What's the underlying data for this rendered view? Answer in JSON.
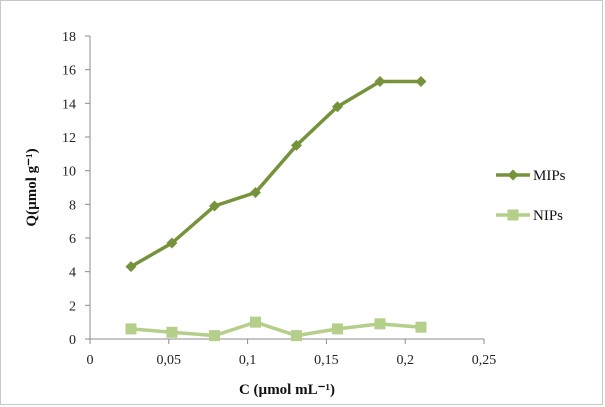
{
  "chart_data": {
    "type": "line",
    "xlabel": "C (µmol mL⁻¹)",
    "ylabel": "Q(µmol g⁻¹)",
    "xlim": [
      0,
      0.25
    ],
    "ylim": [
      0,
      18
    ],
    "x_ticks": [
      "0",
      "0,05",
      "0,1",
      "0,15",
      "0,2",
      "0,25"
    ],
    "x_tick_values": [
      0,
      0.05,
      0.1,
      0.15,
      0.2,
      0.25
    ],
    "y_ticks": [
      "0",
      "2",
      "4",
      "6",
      "8",
      "10",
      "12",
      "14",
      "16",
      "18"
    ],
    "y_tick_values": [
      0,
      2,
      4,
      6,
      8,
      10,
      12,
      14,
      16,
      18
    ],
    "grid": false,
    "legend_position": "right",
    "series": [
      {
        "name": "MIPs",
        "marker": "diamond",
        "color": "#76933c",
        "x": [
          0.026,
          0.052,
          0.079,
          0.105,
          0.131,
          0.157,
          0.184,
          0.21
        ],
        "y": [
          4.3,
          5.7,
          7.9,
          8.7,
          11.5,
          13.8,
          15.3,
          15.3
        ]
      },
      {
        "name": "NIPs",
        "marker": "square",
        "color": "#b4cf8a",
        "x": [
          0.026,
          0.052,
          0.079,
          0.105,
          0.131,
          0.157,
          0.184,
          0.21
        ],
        "y": [
          0.6,
          0.4,
          0.2,
          1.0,
          0.2,
          0.6,
          0.9,
          0.7
        ]
      }
    ]
  }
}
